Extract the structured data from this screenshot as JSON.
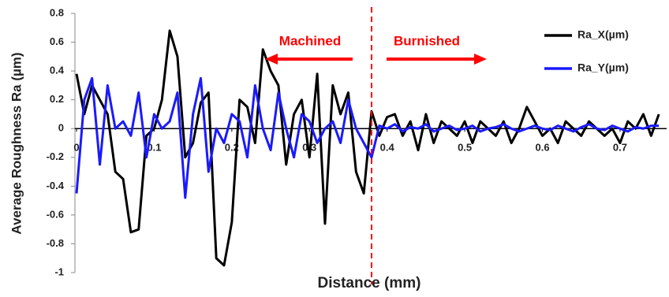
{
  "chart_data": {
    "type": "line",
    "y_label": "Average Roughness Ra  (µm)",
    "x_label": "Distance (mm)",
    "annotations": [
      "Machined",
      "Burnished"
    ],
    "divider_x": 0.38,
    "x": [
      0,
      0.01,
      0.02,
      0.03,
      0.04,
      0.05,
      0.06,
      0.07,
      0.08,
      0.09,
      0.1,
      0.11,
      0.12,
      0.13,
      0.14,
      0.15,
      0.16,
      0.17,
      0.18,
      0.19,
      0.2,
      0.21,
      0.22,
      0.23,
      0.24,
      0.25,
      0.26,
      0.27,
      0.28,
      0.29,
      0.3,
      0.31,
      0.32,
      0.33,
      0.34,
      0.35,
      0.36,
      0.37,
      0.38,
      0.39,
      0.4,
      0.41,
      0.42,
      0.43,
      0.44,
      0.45,
      0.46,
      0.47,
      0.48,
      0.49,
      0.5,
      0.51,
      0.52,
      0.53,
      0.54,
      0.55,
      0.56,
      0.57,
      0.58,
      0.59,
      0.6,
      0.61,
      0.62,
      0.63,
      0.64,
      0.65,
      0.66,
      0.67,
      0.68,
      0.69,
      0.7,
      0.71,
      0.72,
      0.73,
      0.74,
      0.75
    ],
    "series": [
      {
        "name": "Ra_X(µm)",
        "color": "#000000",
        "values": [
          0.38,
          0.1,
          0.3,
          0.2,
          0.1,
          -0.3,
          -0.35,
          -0.72,
          -0.7,
          -0.05,
          0.0,
          0.2,
          0.68,
          0.5,
          -0.2,
          -0.1,
          0.18,
          0.25,
          -0.9,
          -0.95,
          -0.65,
          0.2,
          0.15,
          -0.1,
          0.55,
          0.4,
          0.3,
          -0.25,
          0.1,
          0.2,
          -0.2,
          0.38,
          -0.66,
          0.3,
          0.1,
          0.25,
          -0.3,
          -0.45,
          0.12,
          -0.05,
          0.08,
          0.1,
          -0.05,
          0.05,
          -0.15,
          0.1,
          -0.1,
          0.05,
          0.0,
          -0.05,
          0.05,
          -0.1,
          0.05,
          0.0,
          -0.05,
          0.05,
          -0.1,
          0.0,
          0.15,
          0.05,
          -0.05,
          0.0,
          -0.1,
          0.05,
          0.0,
          -0.05,
          0.05,
          0.0,
          -0.05,
          0.0,
          -0.1,
          0.05,
          0.0,
          0.1,
          -0.05,
          0.1
        ]
      },
      {
        "name": "Ra_Y(µm)",
        "color": "#1a1aff",
        "values": [
          -0.45,
          0.2,
          0.35,
          -0.25,
          0.3,
          0.0,
          0.05,
          -0.05,
          0.25,
          -0.2,
          0.1,
          0.0,
          0.05,
          0.25,
          -0.48,
          0.1,
          0.35,
          -0.3,
          0.0,
          -0.1,
          0.1,
          0.05,
          -0.2,
          0.3,
          0.0,
          -0.15,
          0.25,
          0.0,
          -0.2,
          0.1,
          0.05,
          -0.1,
          0.0,
          0.05,
          -0.1,
          0.2,
          0.0,
          -0.1,
          -0.2,
          0.02,
          0.0,
          0.03,
          -0.02,
          0.01,
          0.0,
          0.03,
          -0.02,
          0.0,
          0.02,
          -0.01,
          0.0,
          0.02,
          -0.02,
          0.0,
          0.01,
          0.03,
          0.0,
          -0.02,
          0.0,
          0.02,
          0.0,
          -0.01,
          0.02,
          0.0,
          -0.02,
          0.01,
          0.03,
          0.0,
          -0.01,
          0.02,
          0.0,
          -0.02,
          0.01,
          0.0,
          0.02,
          0.02
        ]
      }
    ],
    "xlim": [
      0,
      0.76
    ],
    "ylim": [
      -1,
      0.8
    ],
    "xticks": [
      0,
      0.1,
      0.2,
      0.3,
      0.4,
      0.5,
      0.6,
      0.7
    ],
    "yticks": [
      0.8,
      0.6,
      0.4,
      0.2,
      0,
      -0.2,
      -0.4,
      -0.6,
      -0.8,
      -1
    ],
    "annotation_color": "#ff0000"
  }
}
